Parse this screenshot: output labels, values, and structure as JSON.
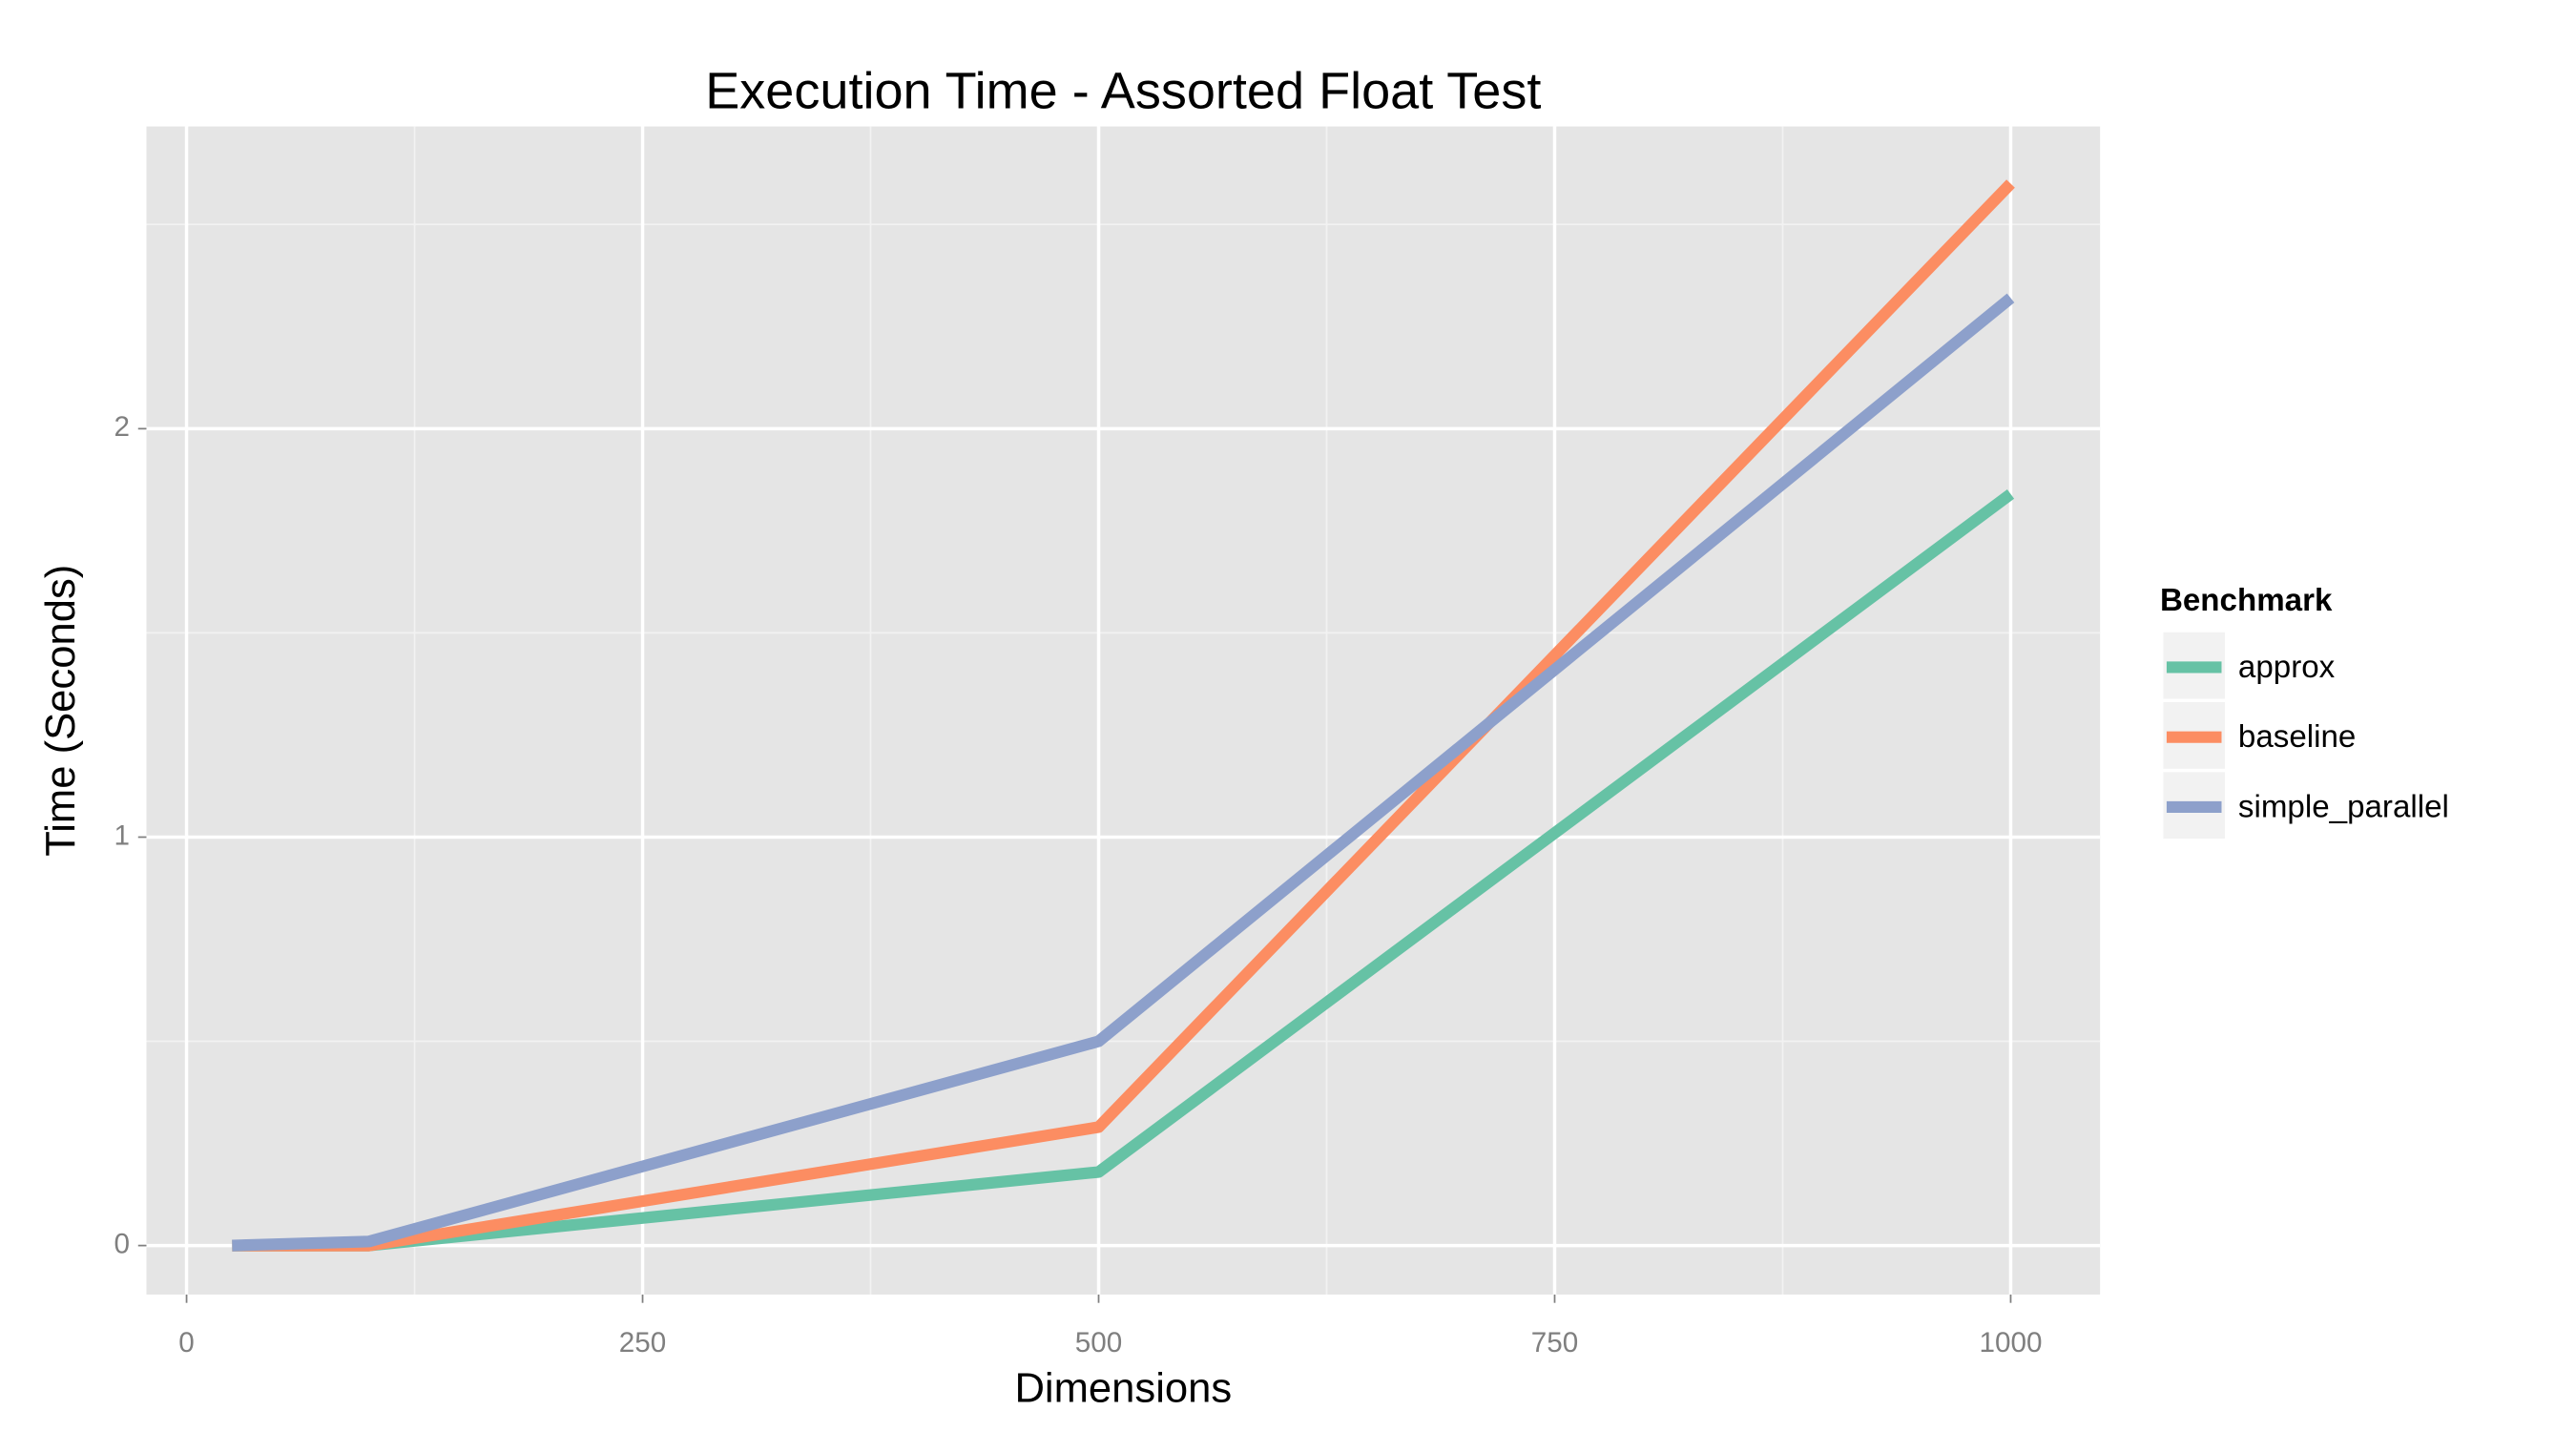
{
  "chart_data": {
    "type": "line",
    "title": "Execution Time - Assorted Float Test",
    "x_label": "Dimensions",
    "y_label": "Time (Seconds)",
    "legend_title": "Benchmark",
    "legend_position": "right",
    "grid": true,
    "x": [
      25,
      100,
      500,
      1000
    ],
    "series": [
      {
        "name": "approx",
        "color": "#66c2a5",
        "values": [
          0,
          0,
          0.18,
          1.84
        ]
      },
      {
        "name": "baseline",
        "color": "#fc8d62",
        "values": [
          0,
          0,
          0.29,
          2.6
        ]
      },
      {
        "name": "simple_parallel",
        "color": "#8da0cb",
        "values": [
          0,
          0.01,
          0.5,
          2.32
        ]
      }
    ],
    "xlim": [
      -22,
      1049
    ],
    "ylim": [
      -0.12,
      2.74
    ],
    "xticks": [
      0,
      250,
      500,
      750,
      1000
    ],
    "yticks": [
      0,
      1,
      2
    ],
    "x_minor_ticks": [
      125,
      375,
      625,
      875
    ],
    "y_minor_ticks": [
      0.5,
      1.5,
      2.5
    ]
  }
}
